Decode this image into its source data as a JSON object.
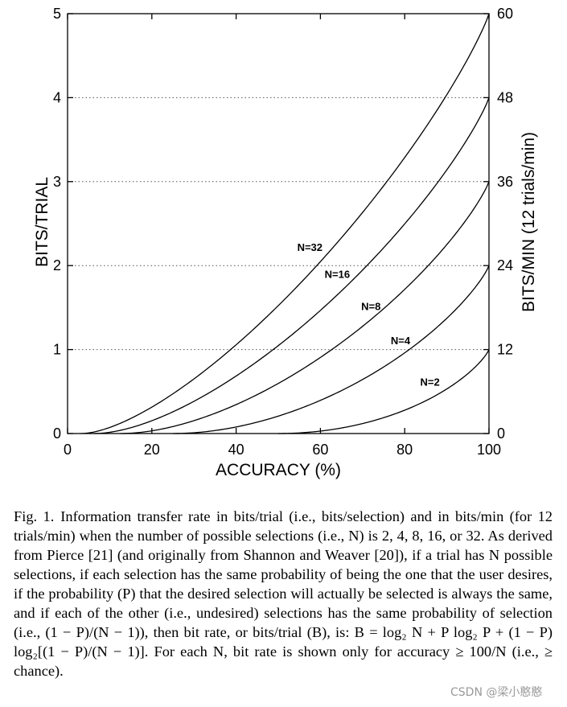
{
  "chart_data": {
    "type": "line",
    "x_label": "ACCURACY (%)",
    "y_label_left": "BITS/TRIAL",
    "y_label_right": "BITS/MIN (12 trials/min)",
    "x_ticks": [
      "0",
      "20",
      "40",
      "60",
      "80",
      "100"
    ],
    "y_ticks_left": [
      "0",
      "1",
      "2",
      "3",
      "4",
      "5"
    ],
    "y_ticks_right": [
      "0",
      "12",
      "24",
      "36",
      "48",
      "60"
    ],
    "xlim": [
      0,
      100
    ],
    "ylim_left": [
      0,
      5
    ],
    "ylim_right": [
      0,
      60
    ],
    "trials_per_min": 12,
    "grid": "dotted horizontal at each left tick",
    "series": [
      {
        "name": "N=2",
        "N": 2,
        "label": "N=2",
        "label_at": [
          86,
          0.62
        ]
      },
      {
        "name": "N=4",
        "N": 4,
        "label": "N=4",
        "label_at": [
          79,
          1.11
        ]
      },
      {
        "name": "N=8",
        "N": 8,
        "label": "N=8",
        "label_at": [
          72,
          1.52
        ]
      },
      {
        "name": "N=16",
        "N": 16,
        "label": "N=16",
        "label_at": [
          64,
          1.9
        ]
      },
      {
        "name": "N=32",
        "N": 32,
        "label": "N=32",
        "label_at": [
          57.5,
          2.22
        ]
      }
    ]
  },
  "caption": {
    "label": "Fig. 1.",
    "text": "Information transfer rate in bits/trial (i.e., bits/selection) and in bits/min (for 12 trials/min) when the number of possible selections (i.e., N) is 2, 4, 8, 16, or 32. As derived from Pierce [21] (and originally from Shannon and Weaver [20]), if a trial has N possible selections, if each selection has the same probability of being the one that the user desires, if the probability (P) that the desired selection will actually be selected is always the same, and if each of the other (i.e., undesired) selections has the same probability of selection (i.e., (1 − P)/(N − 1)), then bit rate, or bits/trial (B), is: B = log₂ N + P log₂ P + (1 − P) log₂[(1 − P)/(N − 1)]. For each N, bit rate is shown only for accuracy ≥ 100/N (i.e., ≥ chance)."
  },
  "watermark": "CSDN @梁小憨憨"
}
